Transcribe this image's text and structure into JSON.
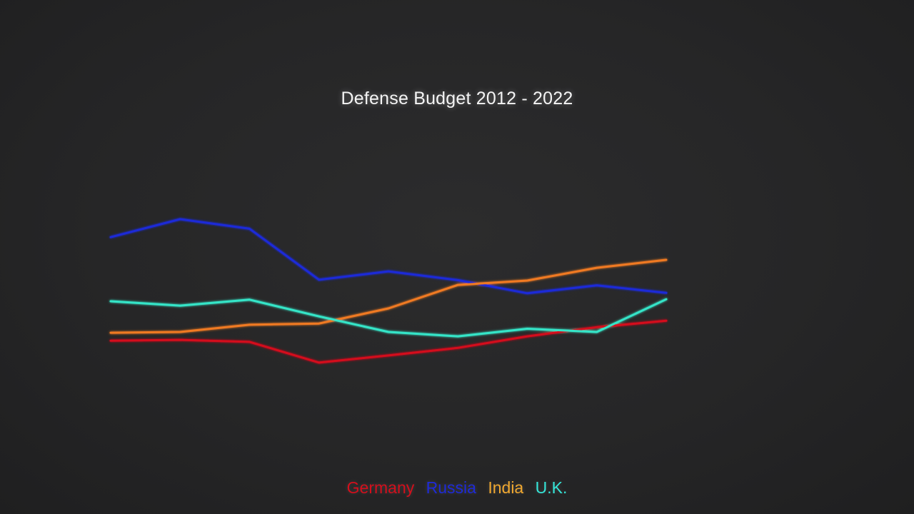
{
  "chart_data": {
    "type": "line",
    "title": "Defense Budget 2012 - 2022",
    "xlabel": "",
    "ylabel": "",
    "x": [
      0,
      1,
      2,
      3,
      4,
      5,
      6,
      7,
      8
    ],
    "ylim": [
      0,
      100
    ],
    "grid": false,
    "legend_position": "bottom",
    "series": [
      {
        "name": "Germany",
        "color": "#d40f1c",
        "values": [
          31.5,
          31.7,
          31.2,
          26.0,
          27.8,
          29.7,
          32.6,
          34.9,
          36.5
        ]
      },
      {
        "name": "Russia",
        "color": "#1e2ad8",
        "values": [
          57.5,
          62.0,
          59.6,
          46.8,
          48.9,
          46.7,
          43.4,
          45.4,
          43.5
        ]
      },
      {
        "name": "India",
        "color": "#f07a24",
        "values": [
          33.5,
          33.7,
          35.5,
          35.8,
          39.6,
          45.5,
          46.6,
          49.8,
          51.8
        ]
      },
      {
        "name": "U.K.",
        "color": "#35e5c8",
        "values": [
          41.4,
          40.3,
          41.8,
          37.6,
          33.7,
          32.6,
          34.5,
          33.7,
          41.9
        ]
      }
    ]
  }
}
